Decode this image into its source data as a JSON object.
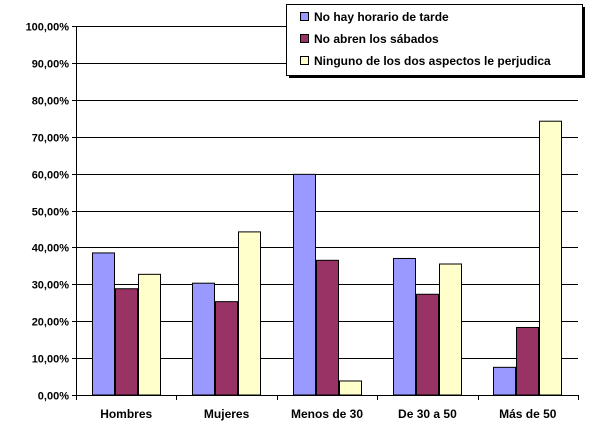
{
  "chart_data": {
    "type": "bar",
    "categories": [
      "Hombres",
      "Mujeres",
      "Menos de 30",
      "De 30 a 50",
      "Más de 50"
    ],
    "series": [
      {
        "name": "No hay horario de tarde",
        "color": "#9999ff",
        "values": [
          38.5,
          30.3,
          59.8,
          37.0,
          7.5
        ]
      },
      {
        "name": "No abren los sábados",
        "color": "#993366",
        "values": [
          28.8,
          25.3,
          36.5,
          27.3,
          18.3
        ]
      },
      {
        "name": "Ninguno de los dos aspectos le perjudica",
        "color": "#ffffcc",
        "values": [
          32.7,
          44.2,
          3.8,
          35.5,
          74.2
        ]
      }
    ],
    "ylim": [
      0,
      100
    ],
    "yticks": [
      "0,00%",
      "10,00%",
      "20,00%",
      "30,00%",
      "40,00%",
      "50,00%",
      "60,00%",
      "70,00%",
      "80,00%",
      "90,00%",
      "100,00%"
    ],
    "grid": true,
    "legend_position": "top-right",
    "title": "",
    "xlabel": "",
    "ylabel": ""
  }
}
